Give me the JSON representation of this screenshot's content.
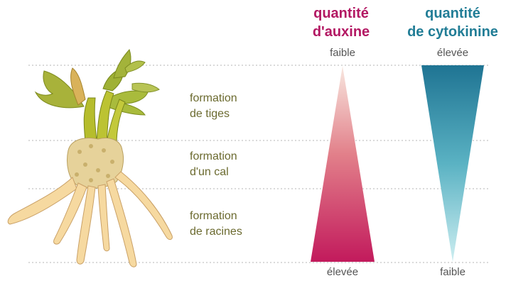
{
  "colors": {
    "auxin": "#b31863",
    "auxin_light": "#f8e7df",
    "cytokinin": "#217d96",
    "cytokinin_light": "#c9ecef",
    "label_text": "#6b6a2f",
    "level_text": "#555555",
    "divider": "#b5b5b5"
  },
  "stages": [
    {
      "line1": "formation",
      "line2": "de tiges"
    },
    {
      "line1": "formation",
      "line2": "d'un cal"
    },
    {
      "line1": "formation",
      "line2": "de racines"
    }
  ],
  "auxin": {
    "title_line1": "quantité",
    "title_line2": "d'auxine",
    "top_label": "faible",
    "bottom_label": "élevée"
  },
  "cytokinin": {
    "title_line1": "quantité",
    "title_line2": "de cytokinine",
    "top_label": "élevée",
    "bottom_label": "faible"
  },
  "icons": {
    "plant": "plant-explant-illustration"
  }
}
